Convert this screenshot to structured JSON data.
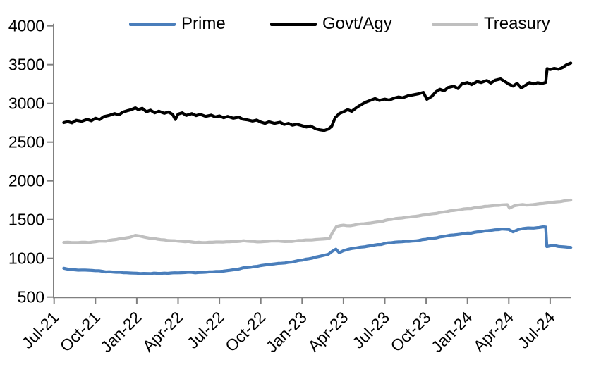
{
  "legend": [
    {
      "label": "Prime",
      "color": "#4a7ebb"
    },
    {
      "label": "Govt/Agy",
      "color": "#000000"
    },
    {
      "label": "Treasury",
      "color": "#bfbfbf"
    }
  ],
  "axis": {
    "line_color": "#808080",
    "label_color": "#000000"
  },
  "chart_data": {
    "type": "line",
    "title": "",
    "xlabel": "",
    "ylabel": "",
    "grid": false,
    "legend_position": "top",
    "ylim": [
      500,
      4000
    ],
    "y_tick_values": [
      500,
      1000,
      1500,
      2000,
      2500,
      3000,
      3500,
      4000
    ],
    "y_tick_labels": [
      "500",
      "1000",
      "1500",
      "2000",
      "2500",
      "3000",
      "3500",
      "4000"
    ],
    "x_tick_labels": [
      "Jul-21",
      "Oct-21",
      "Jan-22",
      "Apr-22",
      "Jul-22",
      "Oct-22",
      "Jan-23",
      "Apr-23",
      "Jul-23",
      "Oct-23",
      "Jan-24",
      "Apr-24",
      "Jul-24"
    ],
    "x_unit": "months_since_2021-07 (0 = Jul-2021; fractional = intra-month)",
    "x_range": [
      0,
      37.5
    ],
    "series": [
      {
        "name": "Prime",
        "color": "#4a7ebb",
        "noise_amplitude": 6,
        "points": [
          [
            0.7,
            872
          ],
          [
            1,
            860
          ],
          [
            1.5,
            852
          ],
          [
            2,
            848
          ],
          [
            2.5,
            846
          ],
          [
            3,
            840
          ],
          [
            3.5,
            833
          ],
          [
            4,
            827
          ],
          [
            4.5,
            820
          ],
          [
            5,
            815
          ],
          [
            5.5,
            811
          ],
          [
            6,
            808
          ],
          [
            6.5,
            805
          ],
          [
            7,
            803
          ],
          [
            7.5,
            806
          ],
          [
            8,
            809
          ],
          [
            8.5,
            811
          ],
          [
            9,
            813
          ],
          [
            9.5,
            816
          ],
          [
            10,
            818
          ],
          [
            10.5,
            817
          ],
          [
            11,
            821
          ],
          [
            11.5,
            825
          ],
          [
            12,
            831
          ],
          [
            12.5,
            840
          ],
          [
            13,
            852
          ],
          [
            13.5,
            866
          ],
          [
            14,
            880
          ],
          [
            14.5,
            893
          ],
          [
            15,
            906
          ],
          [
            15.5,
            918
          ],
          [
            16,
            928
          ],
          [
            16.5,
            936
          ],
          [
            17,
            948
          ],
          [
            17.5,
            962
          ],
          [
            18,
            976
          ],
          [
            18.5,
            995
          ],
          [
            19,
            1016
          ],
          [
            19.5,
            1035
          ],
          [
            19.9,
            1052
          ],
          [
            20.2,
            1092
          ],
          [
            20.45,
            1118
          ],
          [
            20.7,
            1072
          ],
          [
            21,
            1098
          ],
          [
            21.3,
            1115
          ],
          [
            21.6,
            1126
          ],
          [
            22,
            1136
          ],
          [
            22.5,
            1148
          ],
          [
            23,
            1163
          ],
          [
            23.5,
            1178
          ],
          [
            24,
            1192
          ],
          [
            24.5,
            1202
          ],
          [
            25,
            1212
          ],
          [
            25.5,
            1218
          ],
          [
            26,
            1223
          ],
          [
            26.5,
            1232
          ],
          [
            27,
            1246
          ],
          [
            27.5,
            1260
          ],
          [
            28,
            1276
          ],
          [
            28.5,
            1290
          ],
          [
            29,
            1302
          ],
          [
            29.5,
            1313
          ],
          [
            30,
            1325
          ],
          [
            30.5,
            1335
          ],
          [
            31,
            1344
          ],
          [
            31.5,
            1356
          ],
          [
            32,
            1368
          ],
          [
            32.5,
            1378
          ],
          [
            33,
            1372
          ],
          [
            33.3,
            1342
          ],
          [
            33.7,
            1372
          ],
          [
            34,
            1384
          ],
          [
            34.4,
            1392
          ],
          [
            34.8,
            1390
          ],
          [
            35.2,
            1398
          ],
          [
            35.5,
            1406
          ],
          [
            35.68,
            1404
          ],
          [
            35.76,
            1152
          ],
          [
            36,
            1160
          ],
          [
            36.3,
            1166
          ],
          [
            36.6,
            1154
          ],
          [
            37,
            1148
          ],
          [
            37.5,
            1141
          ]
        ]
      },
      {
        "name": "Govt/Agy",
        "color": "#000000",
        "noise_amplitude": 14,
        "points": [
          [
            0.7,
            2752
          ],
          [
            1,
            2765
          ],
          [
            1.3,
            2748
          ],
          [
            1.6,
            2782
          ],
          [
            2,
            2768
          ],
          [
            2.4,
            2795
          ],
          [
            2.7,
            2775
          ],
          [
            3,
            2808
          ],
          [
            3.3,
            2790
          ],
          [
            3.6,
            2828
          ],
          [
            4,
            2845
          ],
          [
            4.4,
            2868
          ],
          [
            4.7,
            2852
          ],
          [
            5,
            2888
          ],
          [
            5.3,
            2905
          ],
          [
            5.6,
            2918
          ],
          [
            5.9,
            2942
          ],
          [
            6.1,
            2920
          ],
          [
            6.4,
            2936
          ],
          [
            6.7,
            2892
          ],
          [
            7,
            2912
          ],
          [
            7.3,
            2878
          ],
          [
            7.6,
            2898
          ],
          [
            8,
            2872
          ],
          [
            8.3,
            2888
          ],
          [
            8.6,
            2858
          ],
          [
            8.8,
            2792
          ],
          [
            9,
            2862
          ],
          [
            9.3,
            2878
          ],
          [
            9.6,
            2845
          ],
          [
            10,
            2868
          ],
          [
            10.3,
            2842
          ],
          [
            10.6,
            2858
          ],
          [
            11,
            2832
          ],
          [
            11.4,
            2848
          ],
          [
            11.7,
            2825
          ],
          [
            12,
            2838
          ],
          [
            12.3,
            2815
          ],
          [
            12.6,
            2832
          ],
          [
            13,
            2808
          ],
          [
            13.4,
            2822
          ],
          [
            13.7,
            2795
          ],
          [
            14,
            2788
          ],
          [
            14.4,
            2772
          ],
          [
            14.7,
            2785
          ],
          [
            15,
            2758
          ],
          [
            15.3,
            2742
          ],
          [
            15.6,
            2762
          ],
          [
            16,
            2742
          ],
          [
            16.4,
            2756
          ],
          [
            16.7,
            2728
          ],
          [
            17,
            2742
          ],
          [
            17.3,
            2718
          ],
          [
            17.6,
            2732
          ],
          [
            18,
            2712
          ],
          [
            18.3,
            2695
          ],
          [
            18.6,
            2708
          ],
          [
            19,
            2672
          ],
          [
            19.3,
            2658
          ],
          [
            19.6,
            2650
          ],
          [
            19.9,
            2668
          ],
          [
            20.15,
            2705
          ],
          [
            20.4,
            2815
          ],
          [
            20.7,
            2868
          ],
          [
            21,
            2892
          ],
          [
            21.3,
            2918
          ],
          [
            21.6,
            2898
          ],
          [
            22,
            2952
          ],
          [
            22.3,
            2985
          ],
          [
            22.6,
            3015
          ],
          [
            23,
            3042
          ],
          [
            23.3,
            3062
          ],
          [
            23.6,
            3038
          ],
          [
            24,
            3055
          ],
          [
            24.3,
            3042
          ],
          [
            24.7,
            3068
          ],
          [
            25,
            3082
          ],
          [
            25.3,
            3072
          ],
          [
            25.7,
            3098
          ],
          [
            26,
            3108
          ],
          [
            26.4,
            3122
          ],
          [
            26.8,
            3142
          ],
          [
            27.05,
            3052
          ],
          [
            27.4,
            3088
          ],
          [
            27.7,
            3148
          ],
          [
            28,
            3182
          ],
          [
            28.3,
            3162
          ],
          [
            28.6,
            3205
          ],
          [
            29,
            3222
          ],
          [
            29.3,
            3192
          ],
          [
            29.6,
            3252
          ],
          [
            30,
            3268
          ],
          [
            30.3,
            3242
          ],
          [
            30.7,
            3282
          ],
          [
            31,
            3268
          ],
          [
            31.4,
            3295
          ],
          [
            31.7,
            3262
          ],
          [
            32,
            3298
          ],
          [
            32.4,
            3315
          ],
          [
            32.8,
            3272
          ],
          [
            33,
            3248
          ],
          [
            33.3,
            3222
          ],
          [
            33.6,
            3258
          ],
          [
            33.9,
            3198
          ],
          [
            34.2,
            3232
          ],
          [
            34.5,
            3268
          ],
          [
            34.8,
            3252
          ],
          [
            35.1,
            3266
          ],
          [
            35.4,
            3256
          ],
          [
            35.68,
            3270
          ],
          [
            35.78,
            3448
          ],
          [
            36,
            3436
          ],
          [
            36.3,
            3452
          ],
          [
            36.6,
            3440
          ],
          [
            36.9,
            3462
          ],
          [
            37.2,
            3498
          ],
          [
            37.5,
            3520
          ]
        ]
      },
      {
        "name": "Treasury",
        "color": "#bfbfbf",
        "noise_amplitude": 6,
        "points": [
          [
            0.7,
            1205
          ],
          [
            1,
            1208
          ],
          [
            1.5,
            1204
          ],
          [
            2,
            1208
          ],
          [
            2.5,
            1203
          ],
          [
            3,
            1214
          ],
          [
            3.5,
            1222
          ],
          [
            4,
            1232
          ],
          [
            4.5,
            1243
          ],
          [
            5,
            1257
          ],
          [
            5.5,
            1272
          ],
          [
            5.9,
            1296
          ],
          [
            6.2,
            1288
          ],
          [
            6.6,
            1272
          ],
          [
            7,
            1258
          ],
          [
            7.5,
            1247
          ],
          [
            8,
            1238
          ],
          [
            8.5,
            1228
          ],
          [
            9,
            1222
          ],
          [
            9.5,
            1215
          ],
          [
            10,
            1211
          ],
          [
            10.5,
            1207
          ],
          [
            11,
            1203
          ],
          [
            11.5,
            1207
          ],
          [
            12,
            1211
          ],
          [
            12.5,
            1214
          ],
          [
            13,
            1217
          ],
          [
            13.5,
            1220
          ],
          [
            14,
            1222
          ],
          [
            14.5,
            1217
          ],
          [
            15,
            1213
          ],
          [
            15.5,
            1219
          ],
          [
            16,
            1224
          ],
          [
            16.5,
            1220
          ],
          [
            17,
            1217
          ],
          [
            17.5,
            1224
          ],
          [
            18,
            1231
          ],
          [
            18.5,
            1236
          ],
          [
            19,
            1243
          ],
          [
            19.5,
            1248
          ],
          [
            20,
            1262
          ],
          [
            20.2,
            1332
          ],
          [
            20.5,
            1412
          ],
          [
            20.8,
            1424
          ],
          [
            21,
            1428
          ],
          [
            21.5,
            1421
          ],
          [
            22,
            1437
          ],
          [
            22.5,
            1446
          ],
          [
            23,
            1456
          ],
          [
            23.5,
            1470
          ],
          [
            24,
            1487
          ],
          [
            24.5,
            1502
          ],
          [
            25,
            1516
          ],
          [
            25.5,
            1527
          ],
          [
            26,
            1538
          ],
          [
            26.5,
            1549
          ],
          [
            27,
            1562
          ],
          [
            27.5,
            1576
          ],
          [
            28,
            1591
          ],
          [
            28.5,
            1604
          ],
          [
            29,
            1617
          ],
          [
            29.5,
            1630
          ],
          [
            30,
            1642
          ],
          [
            30.5,
            1652
          ],
          [
            31,
            1662
          ],
          [
            31.5,
            1673
          ],
          [
            32,
            1683
          ],
          [
            32.5,
            1690
          ],
          [
            32.9,
            1693
          ],
          [
            33.05,
            1648
          ],
          [
            33.4,
            1678
          ],
          [
            34,
            1695
          ],
          [
            34.5,
            1689
          ],
          [
            35,
            1699
          ],
          [
            35.5,
            1708
          ],
          [
            36,
            1718
          ],
          [
            36.5,
            1729
          ],
          [
            37,
            1741
          ],
          [
            37.5,
            1752
          ]
        ]
      }
    ]
  }
}
